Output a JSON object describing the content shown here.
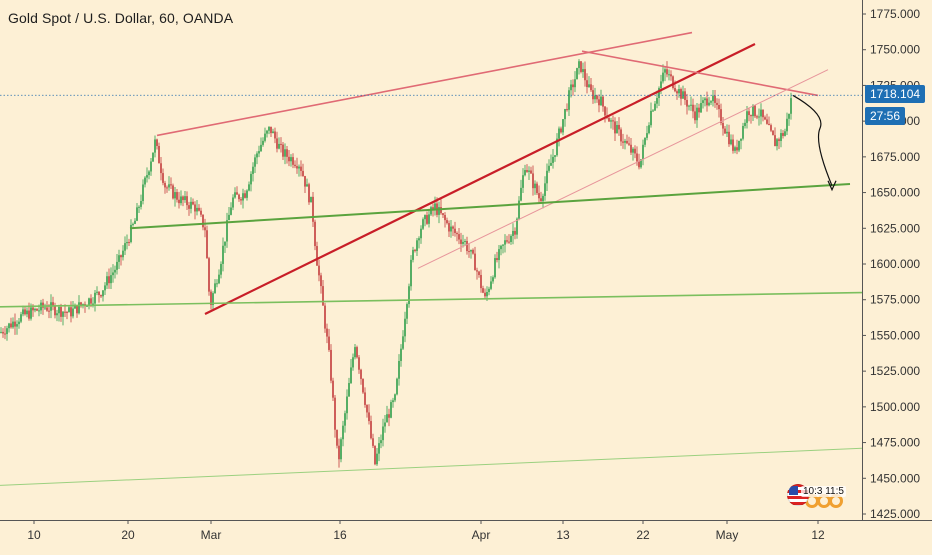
{
  "header": {
    "title": "Gold Spot / U.S. Dollar, 60, OANDA"
  },
  "price_scale": {
    "current_price": "1718.104",
    "countdown": "27:56",
    "current_price_color": "#1e6fb4"
  },
  "clock_badge": {
    "text": "10:3 11:5"
  },
  "colors": {
    "background": "#fdf0d5",
    "up_candle": "#2e9e4a",
    "down_candle": "#c23b3b",
    "red_trendline": "#c81e28",
    "pink_trendline": "#e06a74",
    "green_support": "#6ab04c",
    "axis_text": "#333333"
  },
  "chart_data": {
    "type": "candlestick",
    "symbol": "Gold Spot / U.S. Dollar",
    "interval": "60",
    "broker": "OANDA",
    "ylim": [
      1425,
      1785
    ],
    "y_ticks": [
      "1775.000",
      "1750.000",
      "1725.000",
      "1700.000",
      "1675.000",
      "1650.000",
      "1625.000",
      "1600.000",
      "1575.000",
      "1550.000",
      "1525.000",
      "1500.000",
      "1475.000",
      "1450.000",
      "1425.000"
    ],
    "x_ticks": [
      "10",
      "20",
      "Mar",
      "16",
      "Apr",
      "13",
      "22",
      "May",
      "12"
    ],
    "last_price": 1718.104,
    "price_path": [
      [
        0,
        1552
      ],
      [
        20,
        1563
      ],
      [
        45,
        1570
      ],
      [
        70,
        1566
      ],
      [
        100,
        1580
      ],
      [
        118,
        1600
      ],
      [
        135,
        1630
      ],
      [
        155,
        1685
      ],
      [
        165,
        1655
      ],
      [
        180,
        1645
      ],
      [
        195,
        1640
      ],
      [
        205,
        1625
      ],
      [
        210,
        1570
      ],
      [
        220,
        1600
      ],
      [
        232,
        1645
      ],
      [
        245,
        1650
      ],
      [
        258,
        1680
      ],
      [
        270,
        1695
      ],
      [
        282,
        1678
      ],
      [
        300,
        1670
      ],
      [
        312,
        1640
      ],
      [
        316,
        1608
      ],
      [
        322,
        1575
      ],
      [
        330,
        1530
      ],
      [
        338,
        1460
      ],
      [
        345,
        1495
      ],
      [
        355,
        1545
      ],
      [
        365,
        1505
      ],
      [
        375,
        1460
      ],
      [
        385,
        1490
      ],
      [
        395,
        1505
      ],
      [
        405,
        1565
      ],
      [
        412,
        1605
      ],
      [
        420,
        1625
      ],
      [
        435,
        1640
      ],
      [
        450,
        1625
      ],
      [
        465,
        1615
      ],
      [
        475,
        1600
      ],
      [
        485,
        1575
      ],
      [
        495,
        1600
      ],
      [
        505,
        1615
      ],
      [
        515,
        1625
      ],
      [
        525,
        1670
      ],
      [
        540,
        1645
      ],
      [
        555,
        1680
      ],
      [
        570,
        1720
      ],
      [
        580,
        1740
      ],
      [
        590,
        1720
      ],
      [
        600,
        1715
      ],
      [
        610,
        1700
      ],
      [
        620,
        1690
      ],
      [
        630,
        1680
      ],
      [
        640,
        1670
      ],
      [
        650,
        1705
      ],
      [
        665,
        1735
      ],
      [
        680,
        1720
      ],
      [
        695,
        1705
      ],
      [
        710,
        1718
      ],
      [
        722,
        1700
      ],
      [
        735,
        1678
      ],
      [
        748,
        1708
      ],
      [
        760,
        1705
      ],
      [
        775,
        1685
      ],
      [
        785,
        1693
      ],
      [
        792,
        1718
      ]
    ],
    "lines": [
      {
        "name": "red trendline",
        "color": "#c81e28",
        "width": 2.2,
        "from": [
          205,
          1565
        ],
        "to": [
          755,
          1754
        ]
      },
      {
        "name": "pink resistance upper",
        "color": "#e06a74",
        "width": 1.6,
        "from": [
          157,
          1690
        ],
        "to": [
          692,
          1762
        ]
      },
      {
        "name": "pink resistance down",
        "color": "#e06a74",
        "width": 1.6,
        "from": [
          582,
          1749
        ],
        "to": [
          818,
          1718
        ]
      },
      {
        "name": "thin pink channel",
        "color": "#e7959b",
        "width": 1,
        "from": [
          418,
          1597
        ],
        "to": [
          828,
          1736
        ]
      },
      {
        "name": "green support main",
        "color": "#5aa33e",
        "width": 2,
        "from": [
          130,
          1625
        ],
        "to": [
          850,
          1656
        ]
      },
      {
        "name": "green support lower",
        "color": "#7bbf5e",
        "width": 1.6,
        "from": [
          0,
          1570
        ],
        "to": [
          862,
          1580
        ]
      },
      {
        "name": "green support bottom",
        "color": "#9bd07f",
        "width": 1,
        "from": [
          0,
          1445
        ],
        "to": [
          862,
          1471
        ]
      }
    ],
    "forecast_arrow": {
      "from": [
        793,
        1718
      ],
      "via": [
        820,
        1695
      ],
      "to": [
        832,
        1652
      ]
    }
  }
}
